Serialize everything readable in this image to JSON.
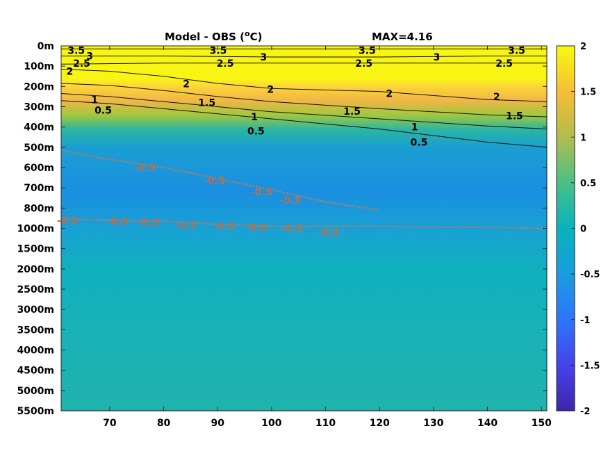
{
  "chart_data": {
    "type": "heatmap",
    "title": "Model - OBS (oC)",
    "title_main": "Model - OBS (",
    "title_sup": "o",
    "title_unit": "C)",
    "max_label": "MAX=4.16",
    "xlabel": "",
    "ylabel": "",
    "xlim": [
      61,
      151
    ],
    "x_ticks": [
      "70",
      "80",
      "90",
      "100",
      "110",
      "120",
      "130",
      "140",
      "150"
    ],
    "y_ticks": [
      "0m",
      "100m",
      "200m",
      "300m",
      "400m",
      "500m",
      "600m",
      "700m",
      "800m",
      "1000m",
      "1500m",
      "2000m",
      "2500m",
      "3000m",
      "3500m",
      "4000m",
      "4500m",
      "5000m",
      "5500m"
    ],
    "colorbar": {
      "range": [
        -2,
        2
      ],
      "ticks": [
        "2",
        "1.5",
        "1",
        "0.5",
        "0",
        "-0.5",
        "-1",
        "-1.5",
        "-2"
      ],
      "colormap": "parula"
    },
    "contour_levels_positive": [
      "3.5",
      "3",
      "2.5",
      "2",
      "1.5",
      "1",
      "0.5"
    ],
    "contour_levels_negative": [
      "-0.5"
    ],
    "contour_lines": [
      {
        "level": 3.5,
        "x": [
          61,
          80,
          100,
          120,
          140,
          151
        ],
        "depth_index": [
          0.15,
          0.15,
          0.15,
          0.15,
          0.15,
          0.15
        ]
      },
      {
        "level": 3,
        "x": [
          61,
          80,
          100,
          120,
          140,
          151
        ],
        "depth_index": [
          0.5,
          0.5,
          0.55,
          0.55,
          0.5,
          0.5
        ]
      },
      {
        "level": 2.5,
        "x": [
          61,
          80,
          100,
          120,
          140,
          151
        ],
        "depth_index": [
          0.9,
          0.85,
          0.85,
          0.85,
          0.85,
          0.85
        ]
      },
      {
        "level": 2,
        "x": [
          61,
          70,
          80,
          90,
          100,
          120,
          140,
          151
        ],
        "depth_index": [
          1.15,
          1.25,
          1.5,
          1.85,
          2.1,
          2.25,
          2.65,
          2.75
        ]
      },
      {
        "level": 1.5,
        "x": [
          61,
          70,
          80,
          90,
          100,
          120,
          140,
          151
        ],
        "depth_index": [
          1.85,
          1.95,
          2.2,
          2.5,
          2.75,
          3.1,
          3.4,
          3.5
        ]
      },
      {
        "level": 1,
        "x": [
          61,
          70,
          80,
          90,
          100,
          120,
          140,
          151
        ],
        "depth_index": [
          2.35,
          2.5,
          2.75,
          3.0,
          3.25,
          3.6,
          3.95,
          4.1
        ]
      },
      {
        "level": 0.5,
        "x": [
          61,
          70,
          80,
          90,
          100,
          120,
          140,
          151
        ],
        "depth_index": [
          2.7,
          2.85,
          3.1,
          3.35,
          3.6,
          4.1,
          4.75,
          5.0
        ]
      },
      {
        "level": -0.5,
        "x": [
          61,
          70,
          80,
          90,
          100,
          110,
          120
        ],
        "depth_index": [
          5.15,
          5.6,
          6.0,
          6.55,
          7.1,
          7.7,
          8.1
        ]
      },
      {
        "level": -0.5,
        "x": [
          61,
          70,
          80,
          90,
          100,
          110,
          120,
          130,
          140,
          151
        ],
        "depth_index": [
          8.55,
          8.6,
          8.65,
          8.8,
          8.9,
          8.9,
          8.9,
          8.95,
          8.95,
          9.0
        ]
      }
    ],
    "contour_label_positions": [
      {
        "text": "3.5",
        "x": 63.8,
        "d": 0.22
      },
      {
        "text": "3",
        "x": 66.3,
        "d": 0.5
      },
      {
        "text": "3.5",
        "x": 90.1,
        "d": 0.22
      },
      {
        "text": "3",
        "x": 98.5,
        "d": 0.55
      },
      {
        "text": "3.5",
        "x": 117.7,
        "d": 0.22
      },
      {
        "text": "3",
        "x": 130.6,
        "d": 0.55
      },
      {
        "text": "3.5",
        "x": 145.4,
        "d": 0.22
      },
      {
        "text": "2.5",
        "x": 64.8,
        "d": 0.85
      },
      {
        "text": "2.5",
        "x": 91.4,
        "d": 0.85
      },
      {
        "text": "2.5",
        "x": 117.1,
        "d": 0.85
      },
      {
        "text": "2.5",
        "x": 143.1,
        "d": 0.85
      },
      {
        "text": "2",
        "x": 62.6,
        "d": 1.25
      },
      {
        "text": "2",
        "x": 84.2,
        "d": 1.87
      },
      {
        "text": "2",
        "x": 99.8,
        "d": 2.15
      },
      {
        "text": "2",
        "x": 121.8,
        "d": 2.35
      },
      {
        "text": "2",
        "x": 141.7,
        "d": 2.5
      },
      {
        "text": "1.5",
        "x": 88.0,
        "d": 2.8
      },
      {
        "text": "1.5",
        "x": 114.9,
        "d": 3.23
      },
      {
        "text": "1.5",
        "x": 145.0,
        "d": 3.45
      },
      {
        "text": "1",
        "x": 67.2,
        "d": 2.65
      },
      {
        "text": "1",
        "x": 96.8,
        "d": 3.5
      },
      {
        "text": "1",
        "x": 126.5,
        "d": 4.0
      },
      {
        "text": "0.5",
        "x": 68.8,
        "d": 3.17
      },
      {
        "text": "0.5",
        "x": 97.1,
        "d": 4.2
      },
      {
        "text": "0.5",
        "x": 127.3,
        "d": 4.75
      },
      {
        "text": "-0.5",
        "x": 76.5,
        "d": 6.0
      },
      {
        "text": "-0.5",
        "x": 89.4,
        "d": 6.65
      },
      {
        "text": "-0.5",
        "x": 98.1,
        "d": 7.2
      },
      {
        "text": "-0.5",
        "x": 103.5,
        "d": 7.6
      },
      {
        "text": "-0.5",
        "x": 62.2,
        "d": 8.6
      },
      {
        "text": "-0.5",
        "x": 71.5,
        "d": 8.65
      },
      {
        "text": "-0.5",
        "x": 77.2,
        "d": 8.7
      },
      {
        "text": "-0.5",
        "x": 84.1,
        "d": 8.85
      },
      {
        "text": "-0.5",
        "x": 91.2,
        "d": 8.9
      },
      {
        "text": "-0.5",
        "x": 97.2,
        "d": 8.95
      },
      {
        "text": "-0.5",
        "x": 103.8,
        "d": 9.0
      },
      {
        "text": "-0.5",
        "x": 110.6,
        "d": 9.2
      }
    ],
    "grid": false,
    "legend": "none"
  }
}
